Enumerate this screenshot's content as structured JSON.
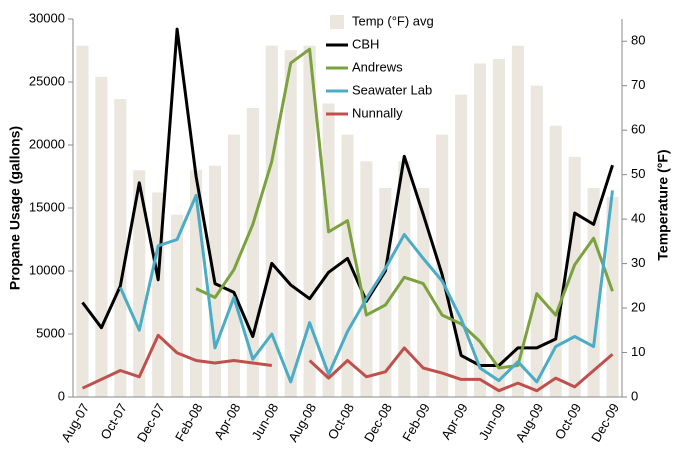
{
  "chart_data": {
    "type": "bar",
    "y_label": "Propane Usage (gallons)",
    "y2_label": "Temperature (°F)",
    "categories": [
      "Aug-07",
      null,
      "Oct-07",
      null,
      "Dec-07",
      null,
      "Feb-08",
      null,
      "Apr-08",
      null,
      "Jun-08",
      null,
      "Aug-08",
      null,
      "Oct-08",
      null,
      "Dec-08",
      null,
      "Feb-09",
      null,
      "Apr-09",
      null,
      "Jun-09",
      null,
      "Aug-09",
      null,
      "Oct-09",
      null,
      "Dec-09"
    ],
    "ylim": [
      0,
      30000
    ],
    "yticks": [
      0,
      5000,
      10000,
      15000,
      20000,
      25000,
      30000
    ],
    "y2lim": [
      0,
      85
    ],
    "y2ticks": [
      0,
      10,
      20,
      30,
      40,
      50,
      60,
      70,
      80
    ],
    "series": [
      {
        "name": "Temp (°F) avg",
        "type": "bar",
        "axis": "y2",
        "color": "#ebe7df",
        "values": [
          79,
          72,
          67,
          51,
          46,
          41,
          51,
          52,
          59,
          65,
          79,
          78,
          79,
          66,
          59,
          53,
          47,
          53,
          47,
          59,
          68,
          75,
          76,
          79,
          70,
          61,
          54,
          47,
          45
        ]
      },
      {
        "name": "CBH",
        "type": "line",
        "color": "#000000",
        "values": [
          7500,
          5500,
          8800,
          17000,
          9300,
          29200,
          17500,
          9000,
          8300,
          4800,
          10600,
          8900,
          7800,
          9900,
          11000,
          7600,
          10000,
          19100,
          14500,
          9700,
          3300,
          2500,
          2500,
          3900,
          3900,
          4600,
          14600,
          13700,
          18400
        ]
      },
      {
        "name": "Andrews",
        "type": "line",
        "color": "#7ba23f",
        "values": [
          null,
          null,
          null,
          null,
          null,
          null,
          8600,
          7900,
          10100,
          13700,
          18700,
          26500,
          27600,
          13100,
          14000,
          6500,
          7300,
          9500,
          9000,
          6500,
          5800,
          4400,
          2300,
          2500,
          8200,
          6500,
          10500,
          12600,
          8400
        ]
      },
      {
        "name": "Seawater Lab",
        "type": "line",
        "color": "#4bacc6",
        "values": [
          null,
          null,
          8700,
          5300,
          12000,
          12500,
          16000,
          3900,
          7900,
          3000,
          5000,
          1200,
          5900,
          1800,
          5200,
          7800,
          10200,
          12900,
          11000,
          9200,
          6200,
          2300,
          1300,
          2800,
          1200,
          4000,
          4800,
          4000,
          16400
        ]
      },
      {
        "name": "Nunnally",
        "type": "line",
        "color": "#c0504d",
        "values": [
          700,
          1400,
          2100,
          1600,
          4900,
          3500,
          2900,
          2700,
          2900,
          2700,
          2500,
          null,
          2900,
          1500,
          2900,
          1600,
          2000,
          3900,
          2300,
          1900,
          1400,
          1400,
          500,
          1100,
          500,
          1500,
          800,
          2100,
          3400
        ]
      }
    ]
  }
}
